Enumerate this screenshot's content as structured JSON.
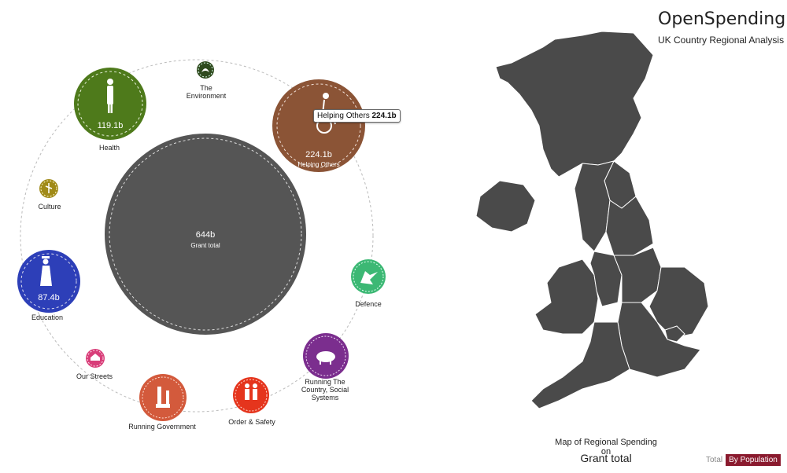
{
  "header": {
    "title": "OpenSpending",
    "subtitle": "UK Country Regional Analysis"
  },
  "center": {
    "value": "644b",
    "label": "Grant total"
  },
  "tooltip": {
    "label": "Helping Others",
    "value": "224.1b"
  },
  "categories": [
    {
      "label": "Health",
      "value": "119.1b",
      "color": "#4e7a1b",
      "icon": "person-icon"
    },
    {
      "label": "The\nEnvironment",
      "value": "",
      "color": "#2f4a1e",
      "icon": "leaf-icon"
    },
    {
      "label": "Helping Others",
      "value": "224.1b",
      "color": "#8b5436",
      "icon": "wheelchair-icon"
    },
    {
      "label": "Culture",
      "value": "",
      "color": "#a08a18",
      "icon": "dancer-icon"
    },
    {
      "label": "Education",
      "value": "87.4b",
      "color": "#2d3fb8",
      "icon": "graduate-icon"
    },
    {
      "label": "Defence",
      "value": "",
      "color": "#3cb874",
      "icon": "soldier-icon"
    },
    {
      "label": "Our Streets",
      "value": "",
      "color": "#d83e79",
      "icon": "house-icon"
    },
    {
      "label": "Running The\nCountry, Social\nSystems",
      "value": "",
      "color": "#7b2e8e",
      "icon": "pig-icon"
    },
    {
      "label": "Running Government",
      "value": "",
      "color": "#d35a3c",
      "icon": "building-icon"
    },
    {
      "label": "Order & Safety",
      "value": "",
      "color": "#e5351d",
      "icon": "police-icon"
    }
  ],
  "map": {
    "caption_line1": "Map of Regional Spending on",
    "caption_line2": "Grant total",
    "region_color": "#4a4a4a"
  },
  "toggle": {
    "off": "Total",
    "on": "By Population"
  }
}
